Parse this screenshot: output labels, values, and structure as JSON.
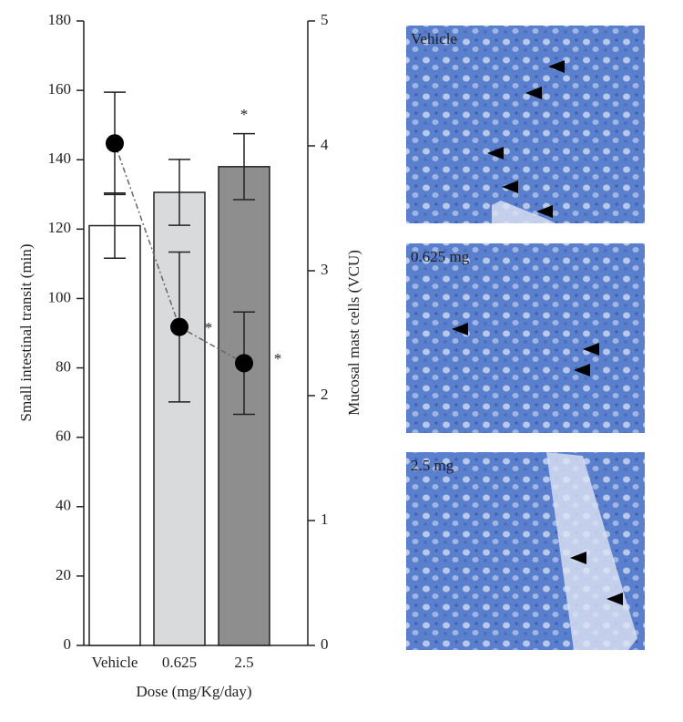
{
  "chart_data": {
    "type": "bar",
    "categories": [
      "Vehicle",
      "0.625",
      "2.5"
    ],
    "series": [
      {
        "type": "bar",
        "colors": [
          "#ffffff",
          "#d9dadc",
          "#8e8e8e"
        ],
        "values": [
          121,
          130.6,
          138
        ],
        "errors": [
          9.4,
          9.5,
          9.5
        ]
      },
      {
        "type": "line",
        "axis": "y2",
        "color": "#000000",
        "values": [
          4.02,
          2.55,
          2.26
        ],
        "errors": [
          0.41,
          0.6,
          0.41
        ]
      }
    ],
    "ylim": [
      0,
      180
    ],
    "yticks": [
      0,
      20,
      40,
      60,
      80,
      100,
      120,
      140,
      160,
      180
    ],
    "y2lim": [
      0,
      5
    ],
    "y2ticks": [
      0,
      1,
      2,
      3,
      4,
      5
    ],
    "xlabel": "Dose (mg/Kg/day)",
    "ylabel": "Small intestinal transit (min)",
    "y2label": "Mucosal mast cells (VCU)",
    "annotations": [
      {
        "text": "*"
      },
      {
        "text": "*"
      },
      {
        "text": "*"
      }
    ]
  },
  "panels": [
    {
      "label": "Vehicle"
    },
    {
      "label": "0.625 mg"
    },
    {
      "label": "2.5 mg"
    }
  ]
}
